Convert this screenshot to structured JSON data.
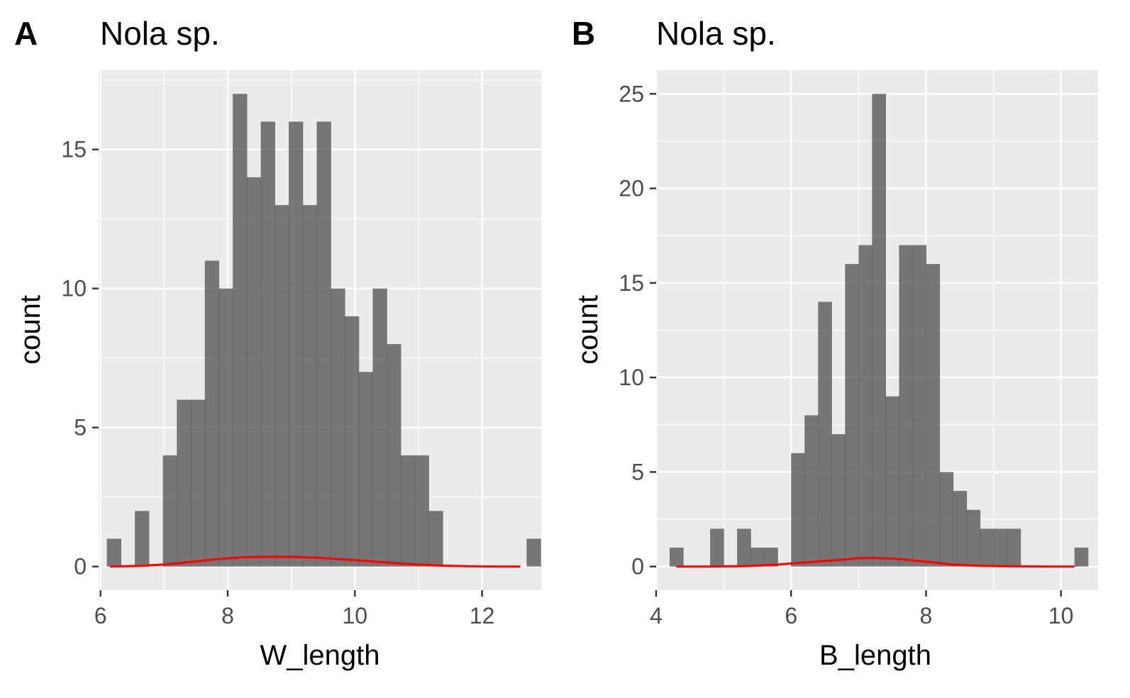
{
  "colors": {
    "panel_background": "#ebebeb",
    "grid": "#ffffff",
    "bar_fill": "#595959",
    "bar_opacity": 0.8,
    "density_line": "#ff0000",
    "tick": "#333333",
    "tick_label": "#4d4d4d"
  },
  "chart_data": [
    {
      "type": "bar",
      "subtype": "histogram",
      "panel_label": "A",
      "title": "Nola sp.",
      "xlabel": "W_length",
      "ylabel": "count",
      "xlim": [
        5.97,
        12.93
      ],
      "ylim": [
        -0.85,
        17.85
      ],
      "x_ticks": [
        6,
        8,
        10,
        12
      ],
      "x_tick_labels": [
        "6",
        "8",
        "10",
        "12"
      ],
      "y_ticks": [
        0,
        5,
        10,
        15
      ],
      "y_tick_labels": [
        "0",
        "5",
        "10",
        "15"
      ],
      "grid": true,
      "bins_start": 6.1,
      "bin_width": 0.22,
      "counts": [
        1,
        0,
        2,
        0,
        4,
        6,
        6,
        11,
        10,
        17,
        14,
        16,
        13,
        16,
        13,
        16,
        10,
        9,
        7,
        10,
        8,
        4,
        4,
        2,
        0,
        0,
        0,
        0,
        0,
        0,
        1
      ],
      "density_curve": {
        "x": [
          6.15,
          6.6,
          7.0,
          7.4,
          7.8,
          8.2,
          8.6,
          9.0,
          9.4,
          9.8,
          10.2,
          10.6,
          11.0,
          11.4,
          11.8,
          12.2,
          12.6
        ],
        "y": [
          0.0,
          0.02,
          0.07,
          0.16,
          0.26,
          0.33,
          0.35,
          0.35,
          0.32,
          0.26,
          0.2,
          0.13,
          0.07,
          0.03,
          0.01,
          0.0,
          0.0
        ]
      }
    },
    {
      "type": "bar",
      "subtype": "histogram",
      "panel_label": "B",
      "title": "Nola sp.",
      "xlabel": "B_length",
      "ylabel": "count",
      "xlim": [
        4.0,
        10.55
      ],
      "ylim": [
        -1.25,
        26.25
      ],
      "x_ticks": [
        4,
        6,
        8,
        10
      ],
      "x_tick_labels": [
        "4",
        "6",
        "8",
        "10"
      ],
      "y_ticks": [
        0,
        5,
        10,
        15,
        20,
        25
      ],
      "y_tick_labels": [
        "0",
        "5",
        "10",
        "15",
        "20",
        "25"
      ],
      "grid": true,
      "bins_start": 4.2,
      "bin_width": 0.2,
      "counts": [
        1,
        0,
        0,
        2,
        0,
        2,
        1,
        1,
        0,
        6,
        8,
        14,
        7,
        16,
        17,
        25,
        9,
        17,
        17,
        16,
        5,
        4,
        3,
        2,
        2,
        2,
        0,
        0,
        0,
        0,
        1
      ],
      "density_curve": {
        "x": [
          4.3,
          4.8,
          5.3,
          5.8,
          6.2,
          6.6,
          7.0,
          7.2,
          7.6,
          8.0,
          8.4,
          8.8,
          9.3,
          9.8,
          10.2
        ],
        "y": [
          0.0,
          0.0,
          0.02,
          0.1,
          0.22,
          0.32,
          0.44,
          0.46,
          0.4,
          0.26,
          0.1,
          0.04,
          0.01,
          0.0,
          0.0
        ]
      }
    }
  ]
}
